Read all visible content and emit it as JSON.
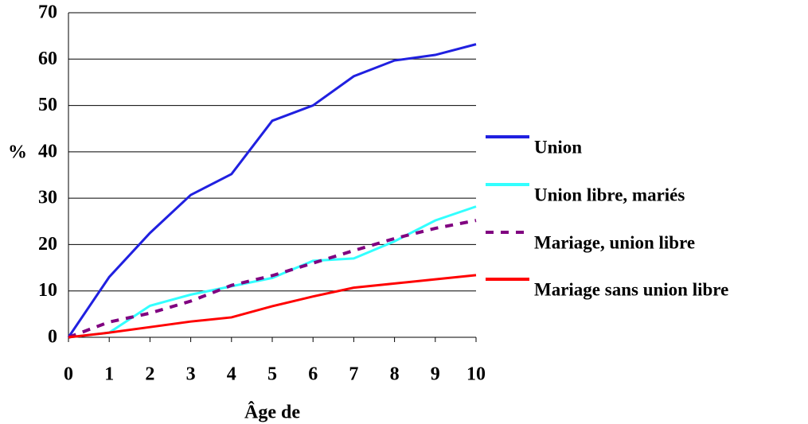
{
  "chart_data": {
    "type": "line",
    "xlabel": "Âge de",
    "ylabel": "%",
    "x": [
      0,
      1,
      2,
      3,
      4,
      5,
      6,
      7,
      8,
      9,
      10
    ],
    "xlim": [
      0,
      10
    ],
    "xticks": [
      0,
      1,
      2,
      3,
      4,
      5,
      6,
      7,
      8,
      9,
      10
    ],
    "ylim": [
      0,
      70
    ],
    "yticks": [
      0,
      10,
      20,
      30,
      40,
      50,
      60,
      70
    ],
    "grid": true,
    "legend": "right",
    "series": [
      {
        "name": "Union",
        "color": "#2020e0",
        "values": [
          0,
          13,
          22.5,
          30.7,
          35.2,
          46.7,
          50,
          56.3,
          59.7,
          60.9,
          63.2
        ]
      },
      {
        "name": "Union libre, mariés",
        "color": "#33ffff",
        "values": [
          0,
          1,
          6.8,
          9.2,
          11,
          12.8,
          16.5,
          17,
          20.7,
          25.2,
          28.2
        ]
      },
      {
        "name": "Mariage, union libre",
        "color": "#800080",
        "dashed": true,
        "values": [
          0,
          3.3,
          5.2,
          7.8,
          11.2,
          13.3,
          16,
          18.7,
          21.3,
          23.5,
          25.2
        ]
      },
      {
        "name": "Mariage sans union libre",
        "color": "#ff0000",
        "values": [
          0,
          1,
          2.2,
          3.4,
          4.3,
          6.7,
          8.8,
          10.7,
          11.6,
          12.5,
          13.4
        ]
      }
    ]
  }
}
